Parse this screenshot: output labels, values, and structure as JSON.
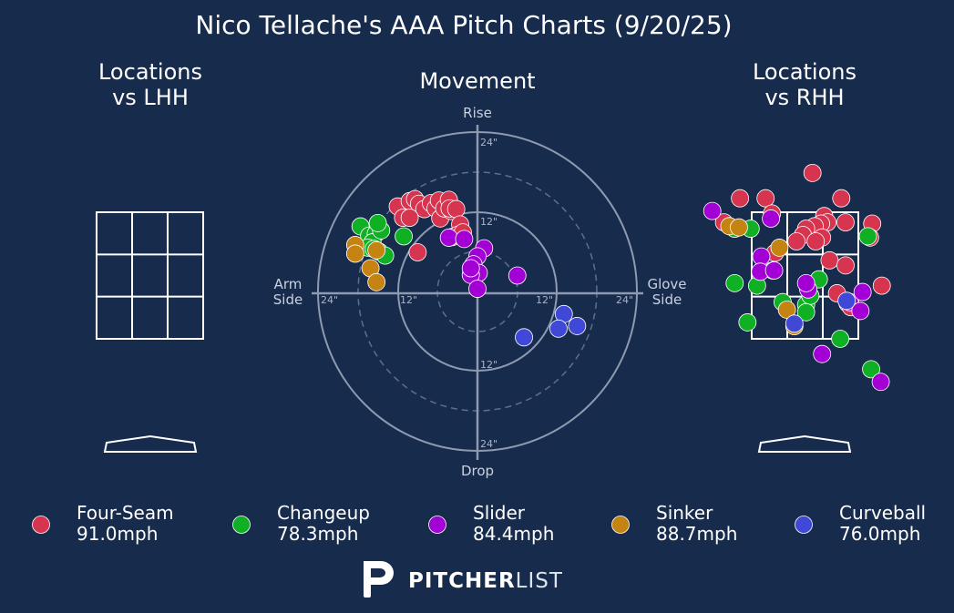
{
  "title": "Nico Tellache's AAA Pitch Charts (9/20/25)",
  "panels": {
    "left_title_line1": "Locations",
    "left_title_line2": "vs LHH",
    "center_title": "Movement",
    "right_title_line1": "Locations",
    "right_title_line2": "vs RHH"
  },
  "movement_axes": {
    "top": "Rise",
    "bottom": "Drop",
    "left_line1": "Arm",
    "left_line2": "Side",
    "right_line1": "Glove",
    "right_line2": "Side",
    "ring_labels": [
      "24\"",
      "12\""
    ]
  },
  "pitch_types": [
    {
      "key": "ff",
      "name": "Four-Seam",
      "velo": "91.0mph",
      "color": "#d7344f"
    },
    {
      "key": "ch",
      "name": "Changeup",
      "velo": "78.3mph",
      "color": "#10b025"
    },
    {
      "key": "sl",
      "name": "Slider",
      "velo": "84.4mph",
      "color": "#a300d6"
    },
    {
      "key": "si",
      "name": "Sinker",
      "velo": "88.7mph",
      "color": "#c58312"
    },
    {
      "key": "cu",
      "name": "Curveball",
      "velo": "76.0mph",
      "color": "#4048d8"
    }
  ],
  "brand": {
    "bold": "PITCHER",
    "light": "LIST"
  },
  "chart_data": [
    {
      "type": "scatter",
      "name": "movement",
      "x_unit": "inches horizontal break (negative = arm side)",
      "y_unit": "inches induced vertical break",
      "xlim": [
        -24,
        24
      ],
      "ylim": [
        -24,
        24
      ],
      "series": [
        {
          "key": "ff",
          "points": [
            [
              -12,
              12.8
            ],
            [
              -10.2,
              13.6
            ],
            [
              -9.4,
              13.9
            ],
            [
              -8.8,
              13.2
            ],
            [
              -8,
              12.4
            ],
            [
              -7,
              13.3
            ],
            [
              -6.3,
              12.5
            ],
            [
              -5.8,
              13.7
            ],
            [
              -5.6,
              11
            ],
            [
              -5,
              12.5
            ],
            [
              -4.3,
              13.8
            ],
            [
              -3.9,
              12.1
            ],
            [
              -4.2,
              12.5
            ],
            [
              -3.2,
              12.4
            ],
            [
              -2.6,
              10.1
            ],
            [
              -3.8,
              8.2
            ],
            [
              -3,
              8.5
            ],
            [
              -2.2,
              8.9
            ],
            [
              -9,
              5.9
            ],
            [
              -11.2,
              11.1
            ],
            [
              -10.2,
              11.1
            ]
          ]
        },
        {
          "key": "ch",
          "points": [
            [
              -17.6,
              9.8
            ],
            [
              -16.3,
              8.4
            ],
            [
              -15.3,
              8.7
            ],
            [
              -15.8,
              7.4
            ],
            [
              -16.5,
              6.6
            ],
            [
              -15.6,
              6.4
            ],
            [
              -14.8,
              6
            ],
            [
              -14.5,
              9.2
            ],
            [
              -15,
              10.3
            ],
            [
              -13.9,
              5.4
            ],
            [
              -11.1,
              8.3
            ]
          ]
        },
        {
          "key": "si",
          "points": [
            [
              -18.4,
              7
            ],
            [
              -18.4,
              5.7
            ],
            [
              -16.1,
              3.5
            ],
            [
              -15.2,
              6.2
            ],
            [
              -15.2,
              1.4
            ]
          ]
        },
        {
          "key": "sl",
          "points": [
            [
              -4.3,
              8.1
            ],
            [
              -2,
              7.9
            ],
            [
              1,
              6.5
            ],
            [
              0,
              5.3
            ],
            [
              -0.6,
              4.1
            ],
            [
              0.2,
              2.8
            ],
            [
              -1,
              2.5
            ],
            [
              -1,
              3.5
            ],
            [
              6,
              2.4
            ],
            [
              0,
              0.4
            ]
          ]
        },
        {
          "key": "cu",
          "points": [
            [
              13,
              -3.4
            ],
            [
              15,
              -5.2
            ],
            [
              12.2,
              -5.6
            ],
            [
              7,
              -6.9
            ]
          ]
        }
      ]
    },
    {
      "type": "scatter",
      "name": "locations_vs_lhh",
      "x_unit": "strike zone widths from center",
      "y_unit": "strike zone heights from bottom",
      "series": []
    },
    {
      "type": "scatter",
      "name": "locations_vs_rhh",
      "x_unit": "strike zone widths from center (catcher view)",
      "y_unit": "strike zone heights from bottom",
      "series": [
        {
          "key": "ff",
          "points": [
            [
              0.07,
              1.31
            ],
            [
              -0.61,
              1.11
            ],
            [
              -0.37,
              1.11
            ],
            [
              0.34,
              1.11
            ],
            [
              -0.31,
              0.99
            ],
            [
              0.18,
              0.97
            ],
            [
              0.38,
              0.92
            ],
            [
              0.63,
              0.91
            ],
            [
              0.21,
              0.92
            ],
            [
              0.15,
              0.91
            ],
            [
              0.09,
              0.89
            ],
            [
              0.01,
              0.87
            ],
            [
              0.16,
              0.8
            ],
            [
              -0.02,
              0.82
            ],
            [
              0.1,
              0.77
            ],
            [
              -0.08,
              0.77
            ],
            [
              0.61,
              0.8
            ],
            [
              -0.28,
              0.68
            ],
            [
              0.23,
              0.62
            ],
            [
              0.38,
              0.58
            ],
            [
              0.72,
              0.42
            ],
            [
              0.3,
              0.36
            ],
            [
              0.4,
              0.28
            ],
            [
              0.43,
              0.25
            ],
            [
              -0.76,
              0.92
            ]
          ]
        },
        {
          "key": "ch",
          "points": [
            [
              -0.66,
              0.87
            ],
            [
              -0.51,
              0.87
            ],
            [
              0.59,
              0.81
            ],
            [
              -0.66,
              0.44
            ],
            [
              -0.45,
              0.42
            ],
            [
              -0.3,
              0.54
            ],
            [
              0.13,
              0.47
            ],
            [
              -0.21,
              0.29
            ],
            [
              0.01,
              0.27
            ],
            [
              0.05,
              0.34
            ],
            [
              0.01,
              0.21
            ],
            [
              -0.54,
              0.13
            ],
            [
              0.33,
              0.0
            ],
            [
              0.62,
              -0.24
            ]
          ]
        },
        {
          "key": "sl",
          "points": [
            [
              -0.87,
              1.01
            ],
            [
              -0.32,
              0.95
            ],
            [
              -0.41,
              0.65
            ],
            [
              -0.42,
              0.53
            ],
            [
              -0.29,
              0.54
            ],
            [
              0.03,
              0.39
            ],
            [
              0.01,
              0.44
            ],
            [
              0.42,
              0.29
            ],
            [
              0.54,
              0.37
            ],
            [
              0.52,
              0.22
            ],
            [
              0.16,
              -0.12
            ],
            [
              0.71,
              -0.34
            ]
          ]
        },
        {
          "key": "si",
          "points": [
            [
              -0.71,
              0.89
            ],
            [
              -0.62,
              0.88
            ],
            [
              -0.24,
              0.72
            ],
            [
              -0.1,
              0.1
            ],
            [
              -0.17,
              0.23
            ]
          ]
        },
        {
          "key": "cu",
          "points": [
            [
              0.39,
              0.3
            ],
            [
              -0.1,
              0.12
            ]
          ]
        }
      ]
    }
  ]
}
